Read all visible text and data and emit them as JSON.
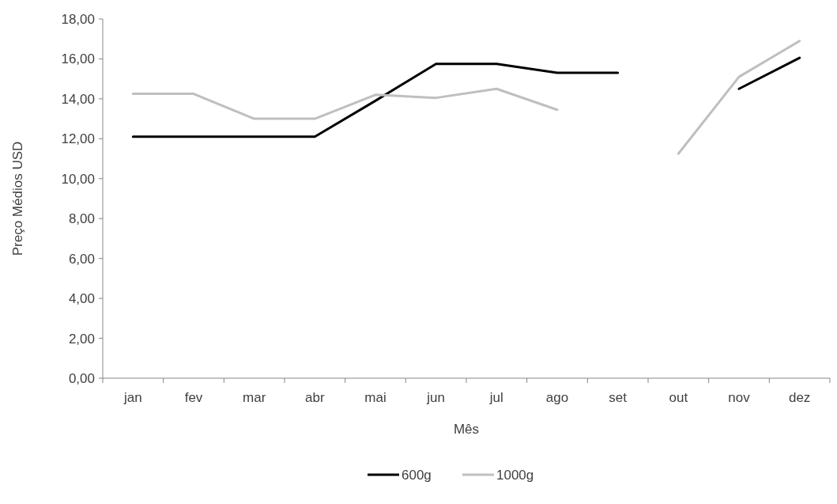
{
  "chart_data": {
    "type": "line",
    "xlabel": "Mês",
    "ylabel": "Preço Médios USD",
    "categories": [
      "jan",
      "fev",
      "mar",
      "abr",
      "mai",
      "jun",
      "jul",
      "ago",
      "set",
      "out",
      "nov",
      "dez"
    ],
    "series": [
      {
        "name": "600g",
        "color": "#000000",
        "values": [
          12.1,
          12.1,
          12.1,
          12.1,
          13.9,
          15.75,
          15.75,
          15.3,
          15.3,
          null,
          14.5,
          16.05
        ]
      },
      {
        "name": "1000g",
        "color": "#bfbfbf",
        "values": [
          14.25,
          14.25,
          13.0,
          13.0,
          14.2,
          14.05,
          14.5,
          13.45,
          null,
          11.25,
          15.1,
          16.9
        ]
      }
    ],
    "ylim": [
      0,
      18
    ],
    "yticks": [
      {
        "value": 0,
        "label": "0,00"
      },
      {
        "value": 2,
        "label": "2,00"
      },
      {
        "value": 4,
        "label": "4,00"
      },
      {
        "value": 6,
        "label": "6,00"
      },
      {
        "value": 8,
        "label": "8,00"
      },
      {
        "value": 10,
        "label": "10,00"
      },
      {
        "value": 12,
        "label": "12,00"
      },
      {
        "value": 14,
        "label": "14,00"
      },
      {
        "value": 16,
        "label": "16,00"
      },
      {
        "value": 18,
        "label": "18,00"
      }
    ],
    "grid": false,
    "legend": "bottom",
    "marker": "none",
    "line_style": "solid"
  }
}
